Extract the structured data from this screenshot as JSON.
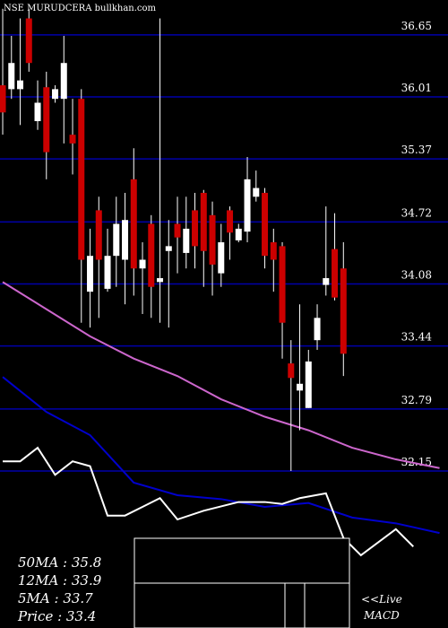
{
  "chart_data": {
    "type": "candlestick",
    "title": "NSE MURUDCERA bullkhan.com",
    "annotations": [
      "50MA : 35.8",
      "12MA : 33.9",
      "5MA : 33.7",
      "Price   : 33.4"
    ],
    "side_note": [
      "<<Live",
      "MACD"
    ],
    "up_color": "#ffffff",
    "down_color": "#cc0000",
    "grid_color": "#0000aa",
    "xlim": [
      -0.31,
      50.97
    ],
    "ylim": [
      30.53,
      37.01
    ],
    "yticks": [
      36.65,
      36.01,
      35.37,
      34.72,
      34.08,
      33.44,
      32.79,
      32.15
    ],
    "open": [
      36.13,
      36.09,
      36.09,
      36.82,
      35.76,
      36.11,
      35.99,
      35.99,
      35.62,
      35.99,
      34.0,
      34.84,
      34.03,
      34.37,
      34.33,
      35.16,
      34.24,
      34.7,
      34.1,
      34.42,
      34.7,
      34.4,
      34.84,
      35.02,
      34.79,
      34.19,
      34.84,
      34.53,
      34.62,
      34.98,
      35.02,
      34.51,
      34.47,
      33.26,
      32.98,
      32.8,
      33.5,
      34.07,
      34.44,
      34.24
    ],
    "high": [
      36.92,
      36.64,
      36.82,
      36.92,
      36.18,
      36.27,
      36.13,
      36.64,
      35.99,
      36.09,
      34.65,
      34.98,
      34.65,
      34.98,
      35.02,
      35.48,
      34.51,
      34.79,
      36.82,
      34.74,
      34.98,
      34.98,
      35.02,
      35.05,
      34.93,
      34.7,
      34.88,
      34.7,
      35.39,
      35.25,
      35.07,
      34.65,
      34.51,
      33.5,
      33.87,
      33.4,
      33.87,
      34.88,
      34.81,
      34.51
    ],
    "low": [
      35.62,
      35.99,
      35.72,
      36.27,
      35.67,
      35.16,
      35.95,
      35.53,
      35.21,
      33.68,
      33.63,
      33.73,
      34.0,
      34.05,
      33.87,
      33.96,
      33.77,
      33.73,
      33.68,
      33.63,
      34.19,
      34.24,
      34.24,
      34.05,
      33.96,
      34.05,
      34.33,
      34.51,
      34.51,
      34.93,
      34.24,
      34.0,
      33.31,
      32.15,
      32.57,
      32.8,
      33.4,
      33.96,
      33.91,
      33.13
    ],
    "close": [
      35.85,
      36.36,
      36.18,
      36.36,
      35.95,
      35.44,
      36.09,
      36.36,
      35.53,
      34.33,
      34.37,
      34.33,
      34.37,
      34.7,
      34.74,
      34.24,
      34.33,
      34.05,
      34.14,
      34.47,
      34.56,
      34.65,
      34.47,
      34.42,
      34.28,
      34.51,
      34.61,
      34.65,
      35.16,
      35.07,
      34.37,
      34.33,
      33.68,
      33.11,
      33.05,
      33.28,
      33.73,
      34.14,
      33.94,
      33.36
    ],
    "lines": [
      {
        "color": "#cc66cc",
        "x": [
          0,
          5,
          10,
          15,
          20,
          25,
          30,
          35,
          40,
          45,
          50
        ],
        "values": [
          34.1,
          33.82,
          33.54,
          33.31,
          33.13,
          32.89,
          32.71,
          32.57,
          32.39,
          32.27,
          32.18
        ]
      },
      {
        "color": "#0000cc",
        "x": [
          0,
          5,
          10,
          15,
          20,
          25,
          30,
          35,
          40,
          45,
          50
        ],
        "values": [
          33.12,
          32.76,
          32.52,
          32.03,
          31.9,
          31.86,
          31.78,
          31.82,
          31.67,
          31.61,
          31.51
        ]
      },
      {
        "color": "#ffffff",
        "x": [
          0,
          2,
          4,
          6,
          8,
          10,
          12,
          14,
          16,
          18,
          20,
          23,
          27,
          30,
          32,
          34,
          37,
          39,
          41,
          45,
          47
        ],
        "values": [
          32.25,
          32.25,
          32.39,
          32.11,
          32.25,
          32.2,
          31.69,
          31.69,
          31.78,
          31.87,
          31.65,
          31.74,
          31.83,
          31.83,
          31.81,
          31.87,
          31.92,
          31.46,
          31.28,
          31.55,
          31.37
        ]
      }
    ]
  }
}
